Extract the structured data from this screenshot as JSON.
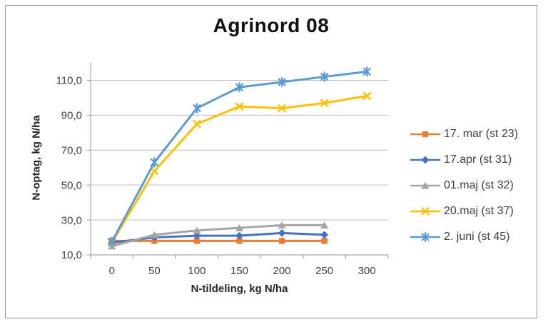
{
  "chart_data": {
    "type": "line",
    "title": "Agrinord 08",
    "xlabel": "N-tildeling, kg N/ha",
    "ylabel": "N-optag, kg N/ha",
    "x_values": [
      0,
      50,
      100,
      150,
      200,
      250,
      300
    ],
    "x_tick_labels": [
      "0",
      "50",
      "100",
      "150",
      "200",
      "250",
      "300"
    ],
    "y_tick_values": [
      10,
      30,
      50,
      70,
      90,
      110
    ],
    "y_tick_labels": [
      "10,0",
      "30,0",
      "50,0",
      "70,0",
      "90,0",
      "110,0"
    ],
    "ylim": [
      10,
      120
    ],
    "grid": "horizontal",
    "legend_position": "right",
    "series": [
      {
        "name": "17. mar (st 23)",
        "color": "#ED7D31",
        "marker": "square",
        "x": [
          0,
          50,
          100,
          150,
          200,
          250
        ],
        "values": [
          18,
          18,
          18,
          18,
          18,
          18
        ]
      },
      {
        "name": "17.apr (st 31)",
        "color": "#4472C4",
        "marker": "diamond",
        "x": [
          0,
          50,
          100,
          150,
          200,
          250
        ],
        "values": [
          17,
          20,
          21,
          21,
          22.5,
          21.5
        ]
      },
      {
        "name": "01.maj (st 32)",
        "color": "#A5A5A5",
        "marker": "triangle",
        "x": [
          0,
          50,
          100,
          150,
          200,
          250
        ],
        "values": [
          15,
          21.5,
          24,
          25.5,
          27,
          27
        ]
      },
      {
        "name": "20.maj (st 37)",
        "color": "#FFC000",
        "marker": "x",
        "x": [
          0,
          50,
          100,
          150,
          200,
          250,
          300
        ],
        "values": [
          17,
          58,
          85,
          95,
          94,
          97,
          101
        ]
      },
      {
        "name": "2. juni (st 45)",
        "color": "#5B9BD5",
        "marker": "asterisk",
        "x": [
          0,
          50,
          100,
          150,
          200,
          250,
          300
        ],
        "values": [
          17.5,
          63,
          94,
          106,
          109,
          112,
          115
        ]
      }
    ],
    "axis_colors": {
      "axis_line": "#A6A6A6",
      "gridline": "#BFBFBF",
      "tick_label": "#404040"
    }
  }
}
